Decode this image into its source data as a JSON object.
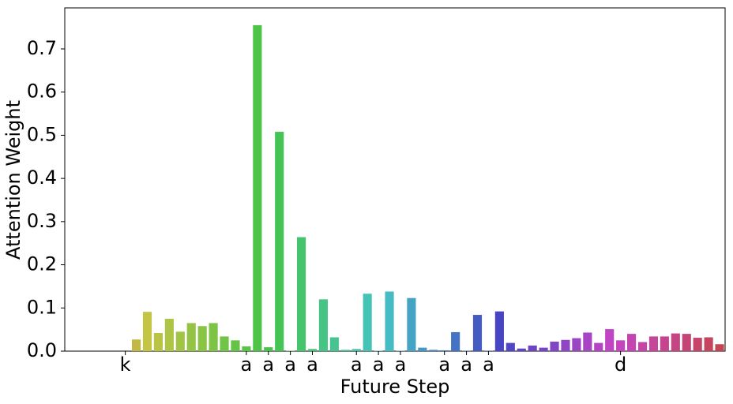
{
  "chart_data": {
    "type": "bar",
    "xlabel": "Future Step",
    "ylabel": "Attention Weight",
    "categories": [
      null,
      null,
      null,
      null,
      null,
      "k",
      null,
      null,
      null,
      null,
      null,
      null,
      null,
      null,
      null,
      null,
      "a",
      null,
      "a",
      null,
      "a",
      null,
      "a",
      null,
      null,
      null,
      "a",
      null,
      "a",
      null,
      "a",
      null,
      null,
      null,
      "a",
      null,
      "a",
      null,
      "a",
      null,
      null,
      null,
      null,
      null,
      null,
      null,
      null,
      null,
      null,
      null,
      "d",
      null,
      null,
      null,
      null,
      null,
      null,
      null,
      null,
      null
    ],
    "values": [
      0,
      0,
      0,
      0,
      0,
      0,
      0.027,
      0.091,
      0.042,
      0.075,
      0.045,
      0.065,
      0.058,
      0.065,
      0.034,
      0.025,
      0.011,
      0.755,
      0.009,
      0.508,
      0.001,
      0.264,
      0.005,
      0.12,
      0.032,
      0.003,
      0.005,
      0.133,
      0.001,
      0.138,
      0.001,
      0.123,
      0.008,
      0.003,
      0.002,
      0.044,
      0.001,
      0.084,
      0.001,
      0.092,
      0.019,
      0.006,
      0.013,
      0.008,
      0.022,
      0.026,
      0.03,
      0.043,
      0.019,
      0.051,
      0.025,
      0.04,
      0.021,
      0.034,
      0.034,
      0.041,
      0.04,
      0.031,
      0.032,
      0.016
    ],
    "palette": "husl",
    "ylim": [
      0,
      0.795
    ],
    "yticks": [
      {
        "value": 0,
        "label": "0.0"
      },
      0.1,
      0.2,
      0.3,
      0.4,
      0.5,
      0.6,
      0.7
    ]
  }
}
